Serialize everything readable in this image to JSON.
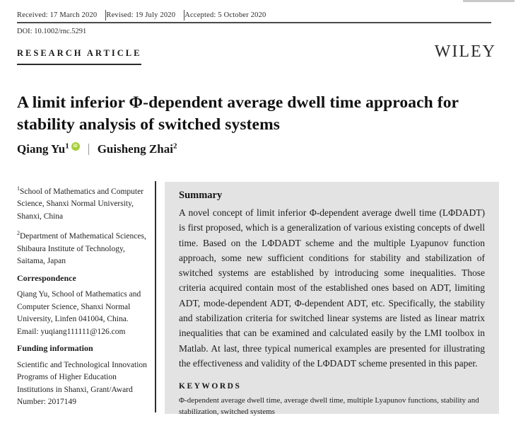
{
  "header": {
    "received": "Received: 17 March 2020",
    "revised": "Revised: 19 July 2020",
    "accepted": "Accepted: 5 October 2020",
    "doi": "DOI: 10.1002/rnc.5291",
    "article_type": "RESEARCH ARTICLE",
    "publisher": "WILEY"
  },
  "title": "A limit inferior Φ-dependent average dwell time approach for stability analysis of switched systems",
  "authors": {
    "first": {
      "name": "Qiang Yu",
      "sup": "1"
    },
    "second": {
      "name": "Guisheng Zhai",
      "sup": "2"
    }
  },
  "icons": {
    "orcid_label": "iD"
  },
  "sidebar": {
    "affiliations": {
      "first": {
        "sup": "1",
        "text": "School of Mathematics and Computer Science, Shanxi Normal University, Shanxi, China"
      },
      "second": {
        "sup": "2",
        "text": "Department of Mathematical Sciences, Shibaura Institute of Technology, Saitama, Japan"
      }
    },
    "correspondence": {
      "heading": "Correspondence",
      "text": "Qiang Yu, School of Mathematics and Computer Science, Shanxi Normal University, Linfen 041004, China.",
      "email_line": "Email: yuqiang111111@126.com"
    },
    "funding": {
      "heading": "Funding information",
      "text": "Scientific and Technological Innovation Programs of Higher Education Institutions in Shanxi, Grant/Award Number: 2017149"
    }
  },
  "summary": {
    "heading": "Summary",
    "body": "A novel concept of limit inferior Φ-dependent average dwell time (LΦDADT) is first proposed, which is a generalization of various existing concepts of dwell time. Based on the LΦDADT scheme and the multiple Lyapunov function approach, some new sufficient conditions for stability and stabilization of switched systems are established by introducing some inequalities. Those criteria acquired contain most of the established ones based on ADT, limiting ADT, mode-dependent ADT, Φ-dependent ADT, etc. Specifically, the stability and stabilization criteria for switched linear systems are listed as linear matrix inequalities that can be examined and calculated easily by the LMI toolbox in Matlab. At last, three typical numerical examples are presented for illustrating the effectiveness and validity of the LΦDADT scheme presented in this paper.",
    "keywords_heading": "KEYWORDS",
    "keywords": "Φ-dependent average dwell time, average dwell time, multiple Lyapunov functions, stability and stabilization, switched systems"
  },
  "colors": {
    "summary_bg": "#e3e3e3",
    "orcid_green": "#a6ce39",
    "rule_dark": "#2f2f2f"
  }
}
